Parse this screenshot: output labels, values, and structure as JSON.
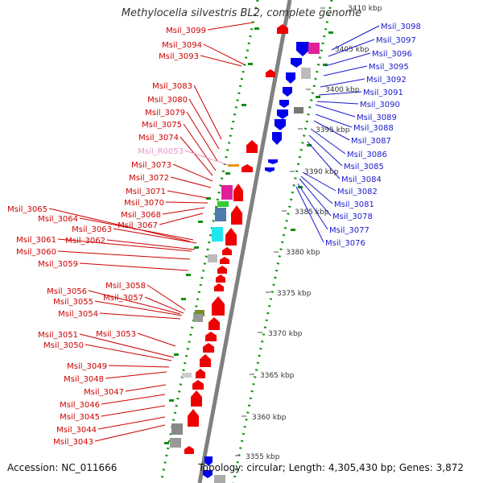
{
  "title": "Methylocella silvestris BL2, complete genome",
  "footer": {
    "accession": "Accession: NC_011666",
    "summary": "Topology: circular; Length: 4,305,430 bp; Genes: 3,872"
  },
  "colors": {
    "left_label": "#cc0000",
    "right_label": "#1a1acc",
    "rna_label": "#e695c8",
    "forward_gene": "#ee0000",
    "reverse_gene": "#0000ee",
    "tick": "#109010",
    "axis": "#808080"
  },
  "scale_ticks": [
    "3410 kbp",
    "3405 kbp",
    "3400 kbp",
    "3395 kbp",
    "3390 kbp",
    "3385 kbp",
    "3380 kbp",
    "3375 kbp",
    "3370 kbp",
    "3365 kbp",
    "3360 kbp",
    "3355 kbp"
  ],
  "left_labels": [
    {
      "text": "Msil_3099"
    },
    {
      "text": "Msil_3094"
    },
    {
      "text": "Msil_3093"
    },
    {
      "text": "Msil_3083"
    },
    {
      "text": "Msil_3080"
    },
    {
      "text": "Msil_3079"
    },
    {
      "text": "Msil_3075"
    },
    {
      "text": "Msil_3074"
    },
    {
      "text": "Msil_R0053",
      "rna": true
    },
    {
      "text": "Msil_3073"
    },
    {
      "text": "Msil_3072"
    },
    {
      "text": "Msil_3071"
    },
    {
      "text": "Msil_3070"
    },
    {
      "text": "Msil_3065"
    },
    {
      "text": "Msil_3064"
    },
    {
      "text": "Msil_3068"
    },
    {
      "text": "Msil_3063"
    },
    {
      "text": "Msil_3067"
    },
    {
      "text": "Msil_3061"
    },
    {
      "text": "Msil_3062"
    },
    {
      "text": "Msil_3060"
    },
    {
      "text": "Msil_3059"
    },
    {
      "text": "Msil_3058"
    },
    {
      "text": "Msil_3056"
    },
    {
      "text": "Msil_3057"
    },
    {
      "text": "Msil_3055"
    },
    {
      "text": "Msil_3054"
    },
    {
      "text": "Msil_3051"
    },
    {
      "text": "Msil_3053"
    },
    {
      "text": "Msil_3050"
    },
    {
      "text": "Msil_3049"
    },
    {
      "text": "Msil_3048"
    },
    {
      "text": "Msil_3047"
    },
    {
      "text": "Msil_3046"
    },
    {
      "text": "Msil_3045"
    },
    {
      "text": "Msil_3044"
    },
    {
      "text": "Msil_3043"
    }
  ],
  "right_labels": [
    {
      "text": "Msil_3098"
    },
    {
      "text": "Msil_3097"
    },
    {
      "text": "Msil_3096"
    },
    {
      "text": "Msil_3095"
    },
    {
      "text": "Msil_3092"
    },
    {
      "text": "Msil_3091"
    },
    {
      "text": "Msil_3090"
    },
    {
      "text": "Msil_3089"
    },
    {
      "text": "Msil_3088"
    },
    {
      "text": "Msil_3087"
    },
    {
      "text": "Msil_3086"
    },
    {
      "text": "Msil_3085"
    },
    {
      "text": "Msil_3084"
    },
    {
      "text": "Msil_3082"
    },
    {
      "text": "Msil_3081"
    },
    {
      "text": "Msil_3078"
    },
    {
      "text": "Msil_3077"
    },
    {
      "text": "Msil_3076"
    }
  ]
}
